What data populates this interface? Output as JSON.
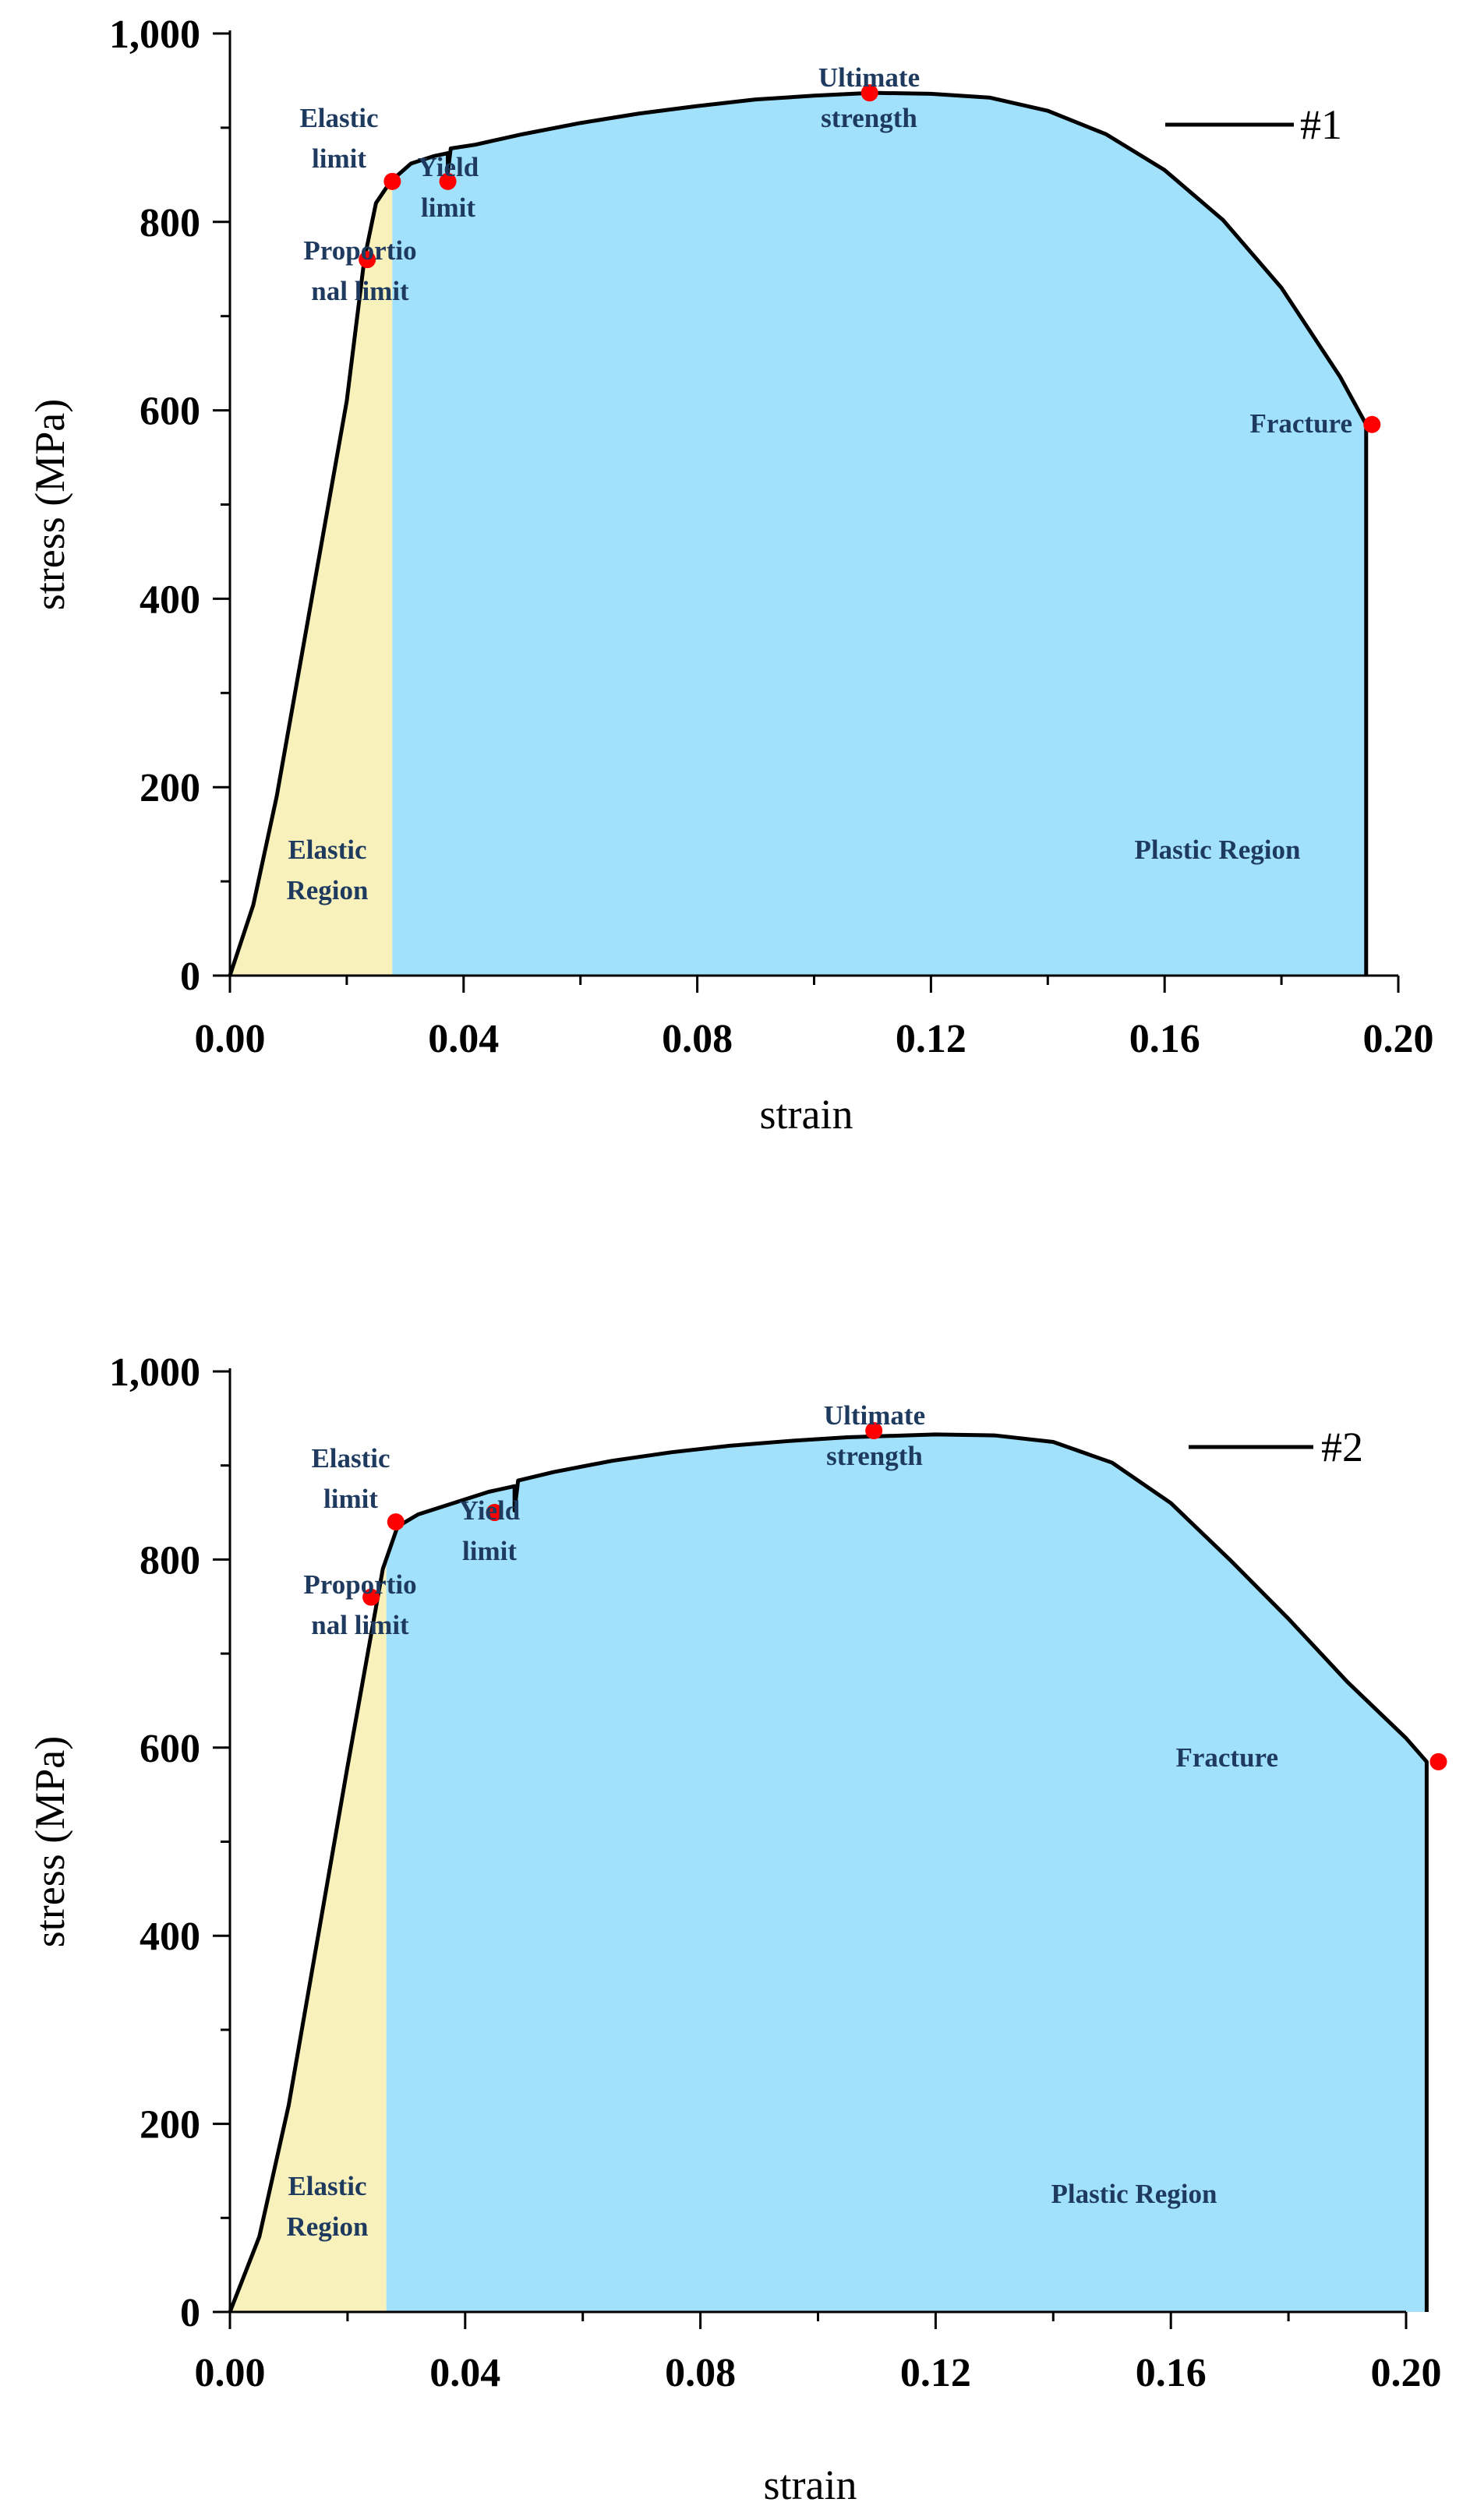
{
  "chart_data": [
    {
      "type": "line",
      "title": "",
      "xlabel": "strain",
      "ylabel": "stress (MPa)",
      "xlim": [
        0,
        0.2
      ],
      "ylim": [
        0,
        1000
      ],
      "x_ticks": [
        0,
        0.04,
        0.08,
        0.12,
        0.16,
        0.2
      ],
      "x_tick_labels": [
        "0.00",
        "0.04",
        "0.08",
        "0.12",
        "0.16",
        "0.20"
      ],
      "y_ticks": [
        0,
        200,
        400,
        600,
        800,
        1000
      ],
      "y_tick_labels": [
        "0",
        "200",
        "400",
        "600",
        "800",
        "1,000"
      ],
      "legend": {
        "position": "top-right",
        "entries": [
          "#1"
        ]
      },
      "series": [
        {
          "name": "#1",
          "color": "#000000",
          "points": [
            [
              0,
              0
            ],
            [
              0.004,
              75
            ],
            [
              0.008,
              190
            ],
            [
              0.012,
              330
            ],
            [
              0.016,
              470
            ],
            [
              0.02,
              610
            ],
            [
              0.023,
              760
            ],
            [
              0.025,
              820
            ],
            [
              0.0275,
              843
            ],
            [
              0.031,
              862
            ],
            [
              0.035,
              870
            ],
            [
              0.0373,
              873
            ],
            [
              0.0373,
              853
            ],
            [
              0.0378,
              878
            ],
            [
              0.042,
              882
            ],
            [
              0.05,
              893
            ],
            [
              0.06,
              905
            ],
            [
              0.07,
              915
            ],
            [
              0.08,
              923
            ],
            [
              0.09,
              930
            ],
            [
              0.1,
              934
            ],
            [
              0.11,
              937
            ],
            [
              0.12,
              936
            ],
            [
              0.13,
              932
            ],
            [
              0.14,
              918
            ],
            [
              0.15,
              893
            ],
            [
              0.16,
              855
            ],
            [
              0.17,
              802
            ],
            [
              0.18,
              730
            ],
            [
              0.19,
              636
            ],
            [
              0.1945,
              585
            ],
            [
              0.1945,
              0
            ]
          ]
        }
      ],
      "regions": [
        {
          "label": "Elastic Region",
          "label_lines": [
            "Elastic",
            "Region"
          ],
          "x_from": 0,
          "x_to": 0.0278,
          "color": "#f8f1bb"
        },
        {
          "label": "Plastic Region",
          "label_lines": [
            "Plastic  Region"
          ],
          "x_from": 0.0278,
          "x_to": 0.1945,
          "color": "#a1e1fc"
        }
      ],
      "points_of_interest": [
        {
          "label_lines": [
            "Proportio",
            "nal limit"
          ],
          "x": 0.0235,
          "y": 760
        },
        {
          "label_lines": [
            "Elastic",
            "limit"
          ],
          "x": 0.0278,
          "y": 843
        },
        {
          "label_lines": [
            "Yield",
            "limit"
          ],
          "x": 0.0373,
          "y": 843
        },
        {
          "label_lines": [
            "Ultimate",
            "strength"
          ],
          "x": 0.1095,
          "y": 937
        },
        {
          "label_lines": [
            "Fracture"
          ],
          "x": 0.1955,
          "y": 585
        }
      ],
      "marker_color": "#ff0000"
    },
    {
      "type": "line",
      "title": "",
      "xlabel": "strain",
      "ylabel": "stress (MPa)",
      "xlim": [
        0,
        0.2
      ],
      "ylim": [
        0,
        1000
      ],
      "x_ticks": [
        0,
        0.04,
        0.08,
        0.12,
        0.16,
        0.2
      ],
      "x_tick_labels": [
        "0.00",
        "0.04",
        "0.08",
        "0.12",
        "0.16",
        "0.20"
      ],
      "y_ticks": [
        0,
        200,
        400,
        600,
        800,
        1000
      ],
      "y_tick_labels": [
        "0",
        "200",
        "400",
        "600",
        "800",
        "1,000"
      ],
      "legend": {
        "position": "top-right",
        "entries": [
          "#2"
        ]
      },
      "series": [
        {
          "name": "#2",
          "color": "#000000",
          "points": [
            [
              0,
              0
            ],
            [
              0.005,
              80
            ],
            [
              0.01,
              220
            ],
            [
              0.015,
              400
            ],
            [
              0.02,
              580
            ],
            [
              0.024,
              720
            ],
            [
              0.026,
              790
            ],
            [
              0.0285,
              835
            ],
            [
              0.032,
              848
            ],
            [
              0.038,
              860
            ],
            [
              0.044,
              872
            ],
            [
              0.0484,
              878
            ],
            [
              0.0484,
              852
            ],
            [
              0.049,
              884
            ],
            [
              0.055,
              893
            ],
            [
              0.065,
              905
            ],
            [
              0.075,
              914
            ],
            [
              0.085,
              921
            ],
            [
              0.095,
              926
            ],
            [
              0.105,
              930
            ],
            [
              0.12,
              933
            ],
            [
              0.13,
              932
            ],
            [
              0.14,
              925
            ],
            [
              0.15,
              903
            ],
            [
              0.16,
              860
            ],
            [
              0.17,
              800
            ],
            [
              0.18,
              737
            ],
            [
              0.19,
              670
            ],
            [
              0.2,
              610
            ],
            [
              0.2035,
              585
            ],
            [
              0.2035,
              0
            ]
          ]
        }
      ],
      "regions": [
        {
          "label": "Elastic Region",
          "label_lines": [
            "Elastic",
            "Region"
          ],
          "x_from": 0,
          "x_to": 0.0266,
          "color": "#f8f1bb"
        },
        {
          "label": "Plastic Region",
          "label_lines": [
            "Plastic  Region"
          ],
          "x_from": 0.0266,
          "x_to": 0.2035,
          "color": "#a1e1fc"
        }
      ],
      "points_of_interest": [
        {
          "label_lines": [
            "Proportio",
            "nal limit"
          ],
          "x": 0.024,
          "y": 760
        },
        {
          "label_lines": [
            "Elastic",
            "limit"
          ],
          "x": 0.0282,
          "y": 840
        },
        {
          "label_lines": [
            "Yield",
            "limit"
          ],
          "x": 0.045,
          "y": 850
        },
        {
          "label_lines": [
            "Ultimate",
            "strength"
          ],
          "x": 0.1095,
          "y": 937
        },
        {
          "label_lines": [
            "Fracture"
          ],
          "x": 0.2055,
          "y": 585
        }
      ],
      "marker_color": "#ff0000"
    }
  ]
}
